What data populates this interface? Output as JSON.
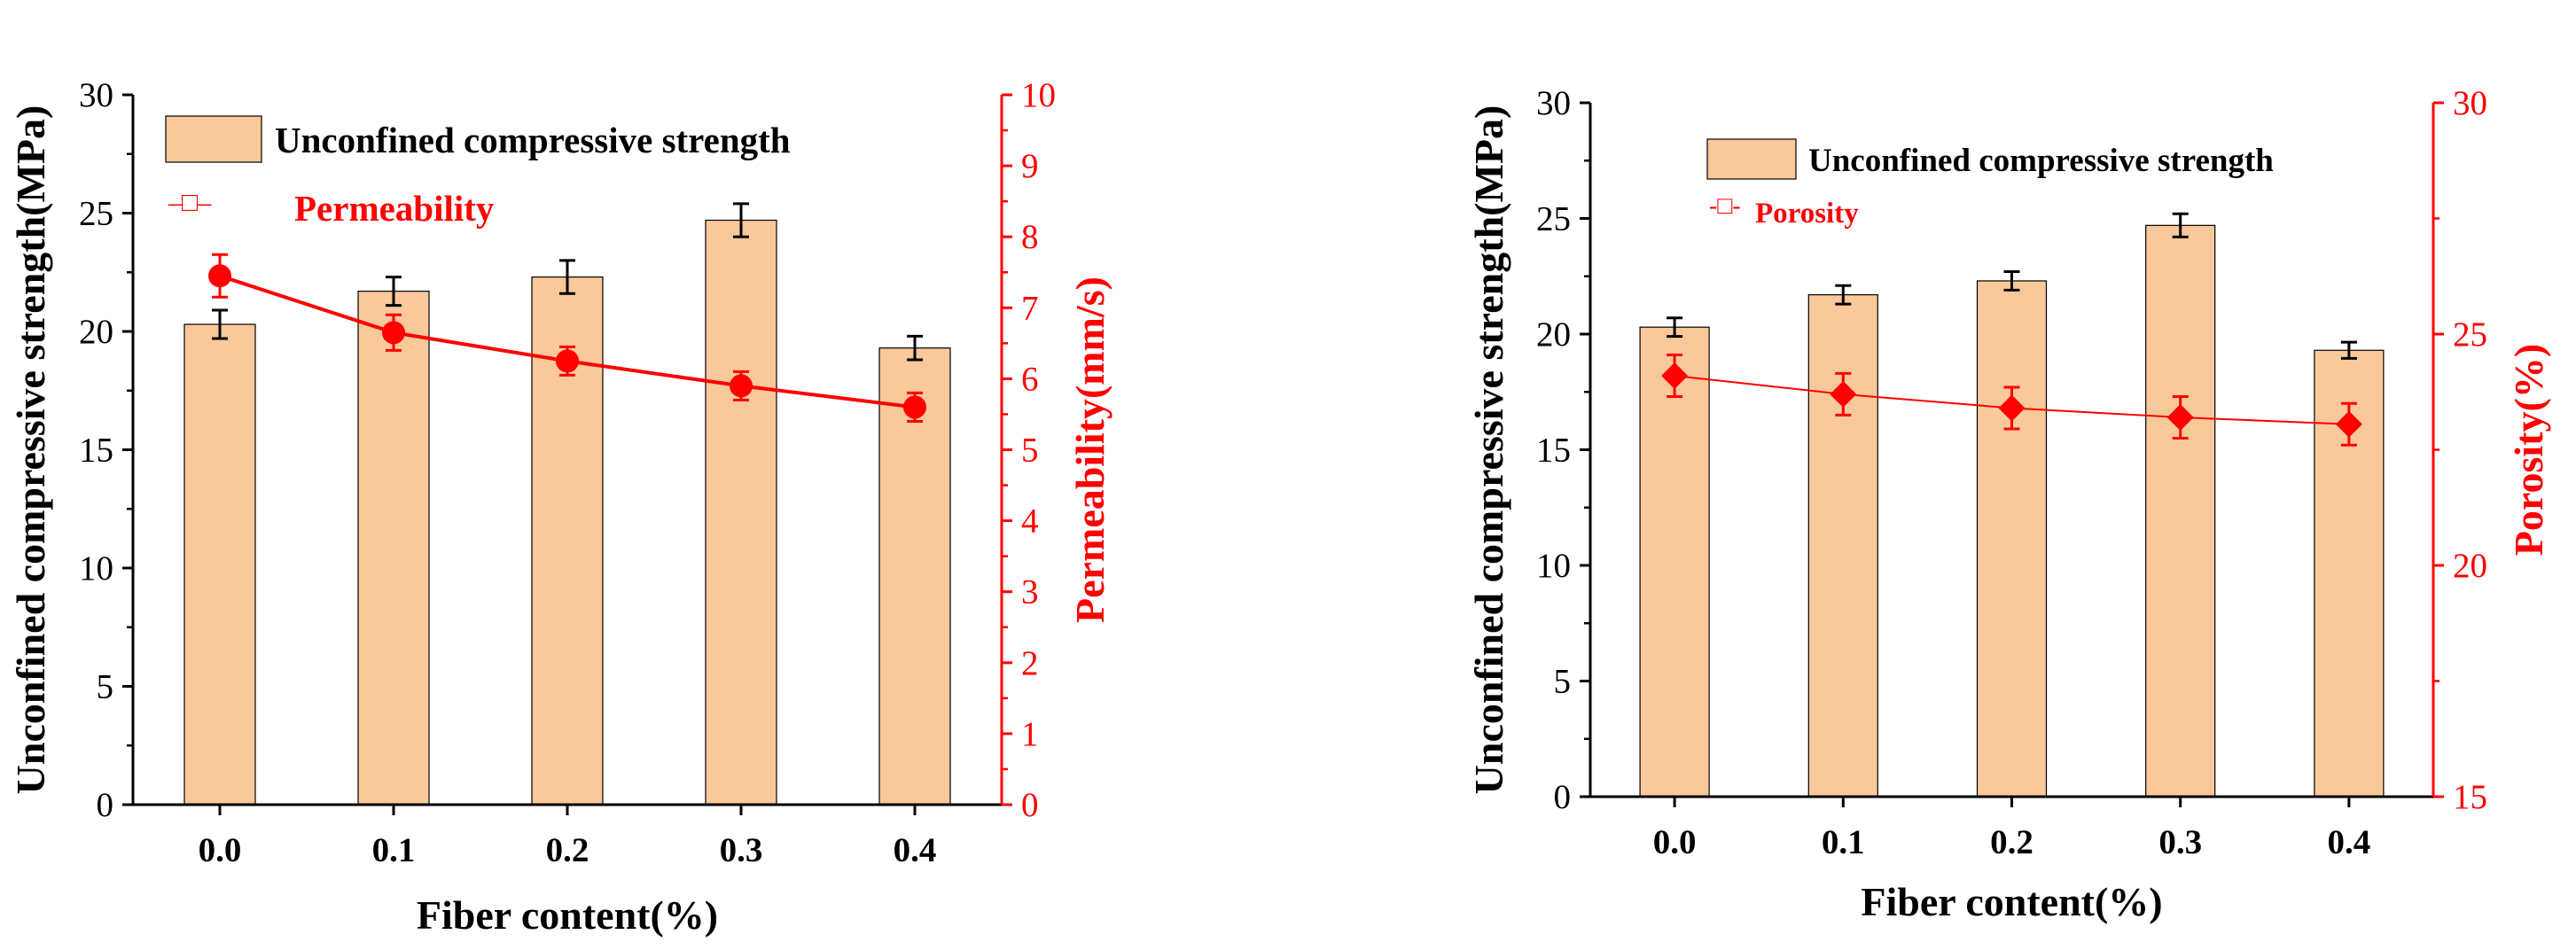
{
  "colors": {
    "bar_fill": "#F9C89B",
    "axis": "#000000",
    "secondary": "#FF0000"
  },
  "chart_data": [
    {
      "type": "bar",
      "categories": [
        "0.0",
        "0.1",
        "0.2",
        "0.3",
        "0.4"
      ],
      "xlabel": "Fiber content(%)",
      "ylabel": "Unconfined compressive strength(MPa)",
      "ylim": [
        0,
        30
      ],
      "yticks": [
        "0",
        "5",
        "10",
        "15",
        "20",
        "25",
        "30"
      ],
      "series": [
        {
          "name": "Unconfined compressive strength",
          "type": "bar",
          "values": [
            20.3,
            21.7,
            22.3,
            24.7,
            19.3
          ],
          "errors": [
            0.6,
            0.6,
            0.7,
            0.7,
            0.5
          ]
        },
        {
          "name": "Permeability",
          "type": "line",
          "axis": "right",
          "marker": "circle",
          "values": [
            7.45,
            6.65,
            6.25,
            5.9,
            5.6
          ],
          "errors": [
            0.3,
            0.25,
            0.2,
            0.2,
            0.2
          ]
        }
      ],
      "y2label": "Permeability(mm/s)",
      "y2lim": [
        0,
        10
      ],
      "y2ticks": [
        "0",
        "1",
        "2",
        "3",
        "4",
        "5",
        "6",
        "7",
        "8",
        "9",
        "10"
      ],
      "legend": [
        {
          "label": "Unconfined compressive strength",
          "symbol": "bar"
        },
        {
          "label": "Permeability",
          "symbol": "line-marker",
          "glyph": "–□–"
        }
      ]
    },
    {
      "type": "bar",
      "categories": [
        "0.0",
        "0.1",
        "0.2",
        "0.3",
        "0.4"
      ],
      "xlabel": "Fiber content(%)",
      "ylabel": "Unconfined compressive strength(MPa)",
      "ylim": [
        0,
        30
      ],
      "yticks": [
        "0",
        "5",
        "10",
        "15",
        "20",
        "25",
        "30"
      ],
      "series": [
        {
          "name": "Unconfined compressive strength",
          "type": "bar",
          "values": [
            20.3,
            21.7,
            22.3,
            24.7,
            19.3
          ],
          "errors": [
            0.4,
            0.4,
            0.4,
            0.5,
            0.35
          ]
        },
        {
          "name": "Porosity",
          "type": "line",
          "axis": "right",
          "marker": "diamond",
          "values": [
            24.1,
            23.7,
            23.4,
            23.2,
            23.05
          ],
          "errors": [
            0.45,
            0.45,
            0.45,
            0.45,
            0.45
          ]
        }
      ],
      "y2label": "Porosity(%)",
      "y2lim": [
        15,
        30
      ],
      "y2ticks": [
        "15",
        "20",
        "25",
        "30"
      ],
      "legend": [
        {
          "label": "Unconfined compressive strength",
          "symbol": "bar"
        },
        {
          "label": "Porosity",
          "symbol": "line-marker",
          "glyph": "-□-"
        }
      ]
    }
  ]
}
